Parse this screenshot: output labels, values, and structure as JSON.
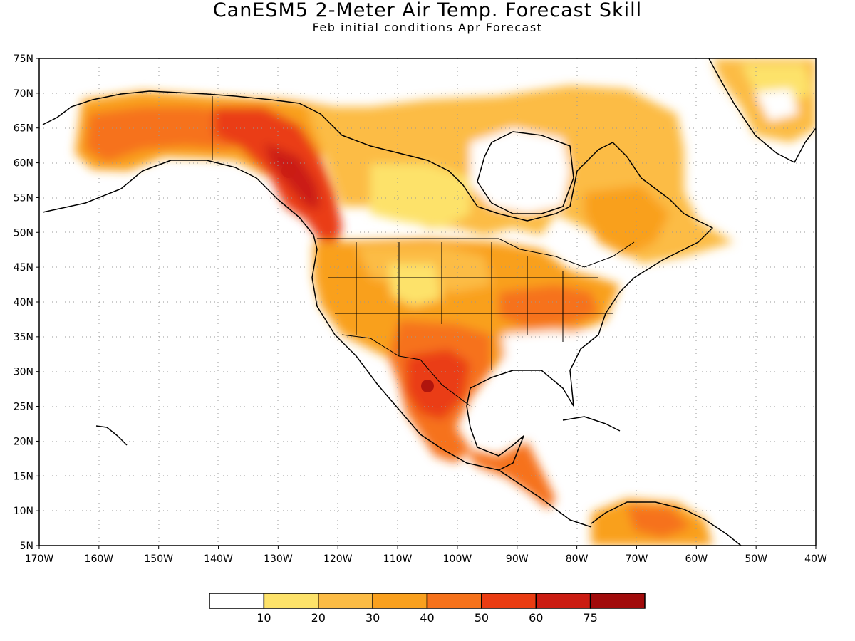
{
  "title": "CanESM5 2-Meter Air Temp. Forecast Skill",
  "subtitle": "Feb initial conditions  Apr Forecast",
  "map": {
    "lon_range": [
      -170,
      -40
    ],
    "lat_range": [
      5,
      75
    ],
    "grid": true,
    "lat_ticks": [
      "75N",
      "70N",
      "65N",
      "60N",
      "55N",
      "50N",
      "45N",
      "40N",
      "35N",
      "30N",
      "25N",
      "20N",
      "15N",
      "10N",
      "5N"
    ],
    "lon_ticks": [
      "170W",
      "160W",
      "150W",
      "140W",
      "130W",
      "120W",
      "110W",
      "100W",
      "90W",
      "80W",
      "70W",
      "60W",
      "50W",
      "40W"
    ]
  },
  "colorbar": {
    "labels": [
      "10",
      "20",
      "30",
      "40",
      "50",
      "60",
      "75"
    ],
    "colors": [
      "#ffffff",
      "#fde26a",
      "#fcbc45",
      "#f9a01e",
      "#f6721b",
      "#ea3c12",
      "#cb1c12",
      "#a10b0b"
    ]
  }
}
